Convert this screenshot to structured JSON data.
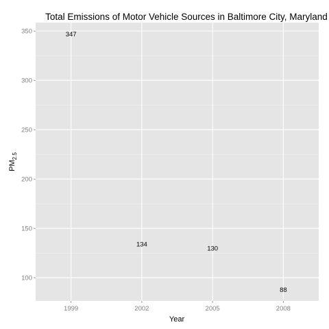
{
  "chart_data": {
    "type": "scatter",
    "title": "Total Emissions of Motor Vehicle Sources in Baltimore City, Maryland",
    "xlabel": "Year",
    "ylabel": "PM",
    "ylabel_subscript": "2.5",
    "x": [
      "1999",
      "2002",
      "2005",
      "2008"
    ],
    "values": [
      347,
      134,
      130,
      88
    ],
    "data_labels": [
      "347",
      "134",
      "130",
      "88"
    ],
    "yticks": [
      100,
      150,
      200,
      250,
      300,
      350
    ],
    "ylim": [
      76.5,
      358.5
    ],
    "grid": true,
    "legend": "none",
    "colors": {
      "panel": "#e5e5e5",
      "grid_major": "#ffffff",
      "grid_minor": "#f2f2f2",
      "text": "#000000",
      "tick_text": "#7f7f7f"
    }
  }
}
